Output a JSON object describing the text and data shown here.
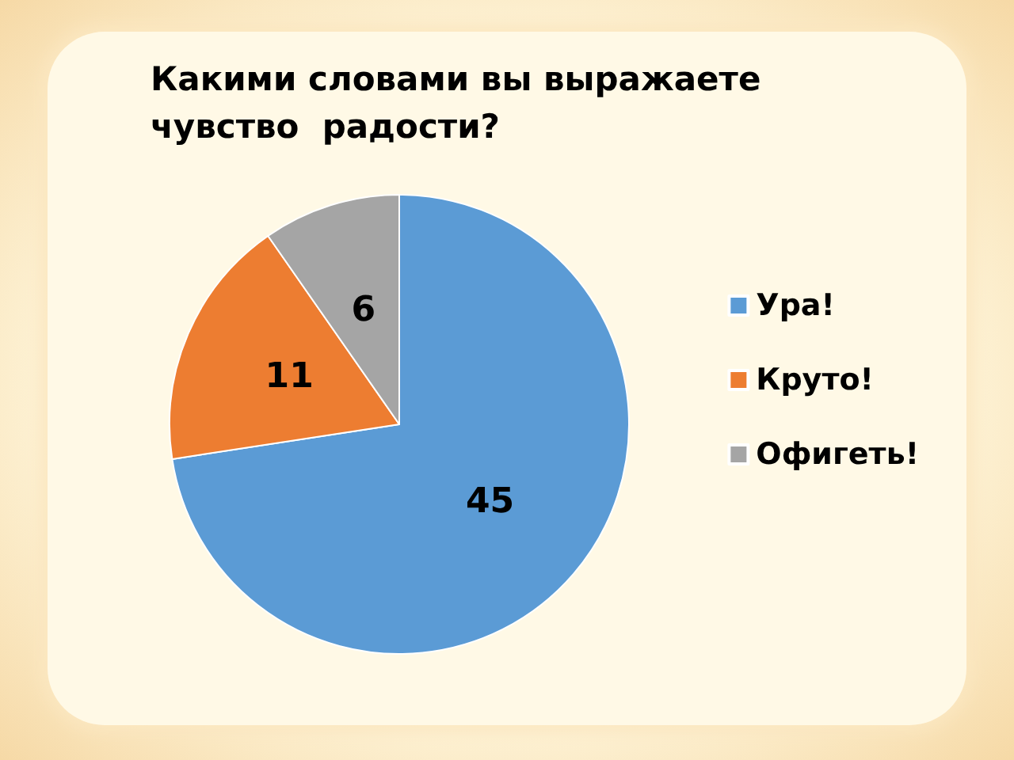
{
  "chart_data": {
    "type": "pie",
    "title": "Какими словами вы выражаете\nчувство  радости?",
    "categories": [
      "Ура!",
      "Круто!",
      "Офигеть!"
    ],
    "values": [
      45,
      11,
      6
    ],
    "colors": [
      "#5b9bd5",
      "#ed7d31",
      "#a5a5a5"
    ],
    "data_labels": true,
    "legend": "right"
  }
}
